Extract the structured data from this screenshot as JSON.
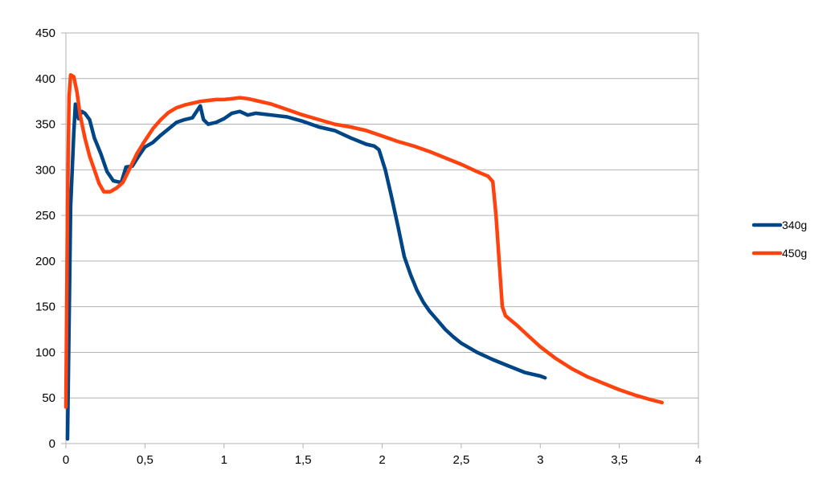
{
  "chart_data": {
    "type": "line",
    "title": "",
    "xlabel": "",
    "ylabel": "",
    "xlim": [
      0,
      4
    ],
    "ylim": [
      0,
      450
    ],
    "x_ticks": [
      0,
      0.5,
      1,
      1.5,
      2,
      2.5,
      3,
      3.5,
      4
    ],
    "x_tick_labels": [
      "0",
      "0,5",
      "1",
      "1,5",
      "2",
      "2,5",
      "3",
      "3,5",
      "4"
    ],
    "y_ticks": [
      0,
      50,
      100,
      150,
      200,
      250,
      300,
      350,
      400,
      450
    ],
    "y_tick_labels": [
      "0",
      "50",
      "100",
      "150",
      "200",
      "250",
      "300",
      "350",
      "400",
      "450"
    ],
    "grid": "horizontal",
    "legend_position": "right",
    "series": [
      {
        "name": "340g",
        "color": "#004586",
        "points": [
          [
            0.01,
            5
          ],
          [
            0.03,
            260
          ],
          [
            0.05,
            340
          ],
          [
            0.06,
            372
          ],
          [
            0.08,
            356
          ],
          [
            0.1,
            364
          ],
          [
            0.12,
            362
          ],
          [
            0.15,
            355
          ],
          [
            0.18,
            335
          ],
          [
            0.22,
            318
          ],
          [
            0.26,
            298
          ],
          [
            0.3,
            288
          ],
          [
            0.35,
            286
          ],
          [
            0.38,
            303
          ],
          [
            0.42,
            304
          ],
          [
            0.46,
            315
          ],
          [
            0.5,
            325
          ],
          [
            0.55,
            330
          ],
          [
            0.6,
            338
          ],
          [
            0.65,
            345
          ],
          [
            0.7,
            352
          ],
          [
            0.75,
            355
          ],
          [
            0.8,
            357
          ],
          [
            0.85,
            370
          ],
          [
            0.87,
            355
          ],
          [
            0.9,
            350
          ],
          [
            0.95,
            352
          ],
          [
            1.0,
            356
          ],
          [
            1.05,
            362
          ],
          [
            1.1,
            364
          ],
          [
            1.15,
            360
          ],
          [
            1.2,
            362
          ],
          [
            1.3,
            360
          ],
          [
            1.4,
            358
          ],
          [
            1.5,
            353
          ],
          [
            1.6,
            347
          ],
          [
            1.7,
            343
          ],
          [
            1.8,
            335
          ],
          [
            1.9,
            328
          ],
          [
            1.95,
            326
          ],
          [
            1.98,
            322
          ],
          [
            2.02,
            300
          ],
          [
            2.06,
            270
          ],
          [
            2.1,
            238
          ],
          [
            2.14,
            205
          ],
          [
            2.18,
            185
          ],
          [
            2.22,
            168
          ],
          [
            2.26,
            155
          ],
          [
            2.3,
            145
          ],
          [
            2.35,
            135
          ],
          [
            2.4,
            125
          ],
          [
            2.45,
            117
          ],
          [
            2.5,
            110
          ],
          [
            2.6,
            100
          ],
          [
            2.7,
            92
          ],
          [
            2.8,
            85
          ],
          [
            2.9,
            78
          ],
          [
            3.0,
            74
          ],
          [
            3.03,
            72
          ]
        ]
      },
      {
        "name": "450g",
        "color": "#ff420e",
        "points": [
          [
            0.0,
            40
          ],
          [
            0.01,
            260
          ],
          [
            0.02,
            380
          ],
          [
            0.03,
            404
          ],
          [
            0.05,
            402
          ],
          [
            0.07,
            385
          ],
          [
            0.09,
            360
          ],
          [
            0.12,
            335
          ],
          [
            0.15,
            315
          ],
          [
            0.18,
            300
          ],
          [
            0.21,
            285
          ],
          [
            0.24,
            276
          ],
          [
            0.28,
            276
          ],
          [
            0.32,
            280
          ],
          [
            0.36,
            286
          ],
          [
            0.4,
            300
          ],
          [
            0.45,
            318
          ],
          [
            0.5,
            332
          ],
          [
            0.55,
            345
          ],
          [
            0.6,
            355
          ],
          [
            0.65,
            363
          ],
          [
            0.7,
            368
          ],
          [
            0.75,
            371
          ],
          [
            0.8,
            373
          ],
          [
            0.85,
            375
          ],
          [
            0.9,
            376
          ],
          [
            0.95,
            377
          ],
          [
            1.0,
            377
          ],
          [
            1.05,
            378
          ],
          [
            1.1,
            379
          ],
          [
            1.15,
            378
          ],
          [
            1.2,
            376
          ],
          [
            1.3,
            372
          ],
          [
            1.4,
            366
          ],
          [
            1.5,
            360
          ],
          [
            1.6,
            355
          ],
          [
            1.7,
            350
          ],
          [
            1.8,
            347
          ],
          [
            1.9,
            343
          ],
          [
            2.0,
            337
          ],
          [
            2.1,
            331
          ],
          [
            2.2,
            326
          ],
          [
            2.3,
            320
          ],
          [
            2.4,
            313
          ],
          [
            2.5,
            306
          ],
          [
            2.6,
            298
          ],
          [
            2.67,
            293
          ],
          [
            2.7,
            287
          ],
          [
            2.72,
            250
          ],
          [
            2.74,
            200
          ],
          [
            2.76,
            150
          ],
          [
            2.78,
            140
          ],
          [
            2.85,
            130
          ],
          [
            2.9,
            122
          ],
          [
            3.0,
            106
          ],
          [
            3.1,
            93
          ],
          [
            3.2,
            82
          ],
          [
            3.3,
            73
          ],
          [
            3.4,
            66
          ],
          [
            3.5,
            59
          ],
          [
            3.6,
            53
          ],
          [
            3.7,
            48
          ],
          [
            3.77,
            45
          ]
        ]
      }
    ]
  }
}
